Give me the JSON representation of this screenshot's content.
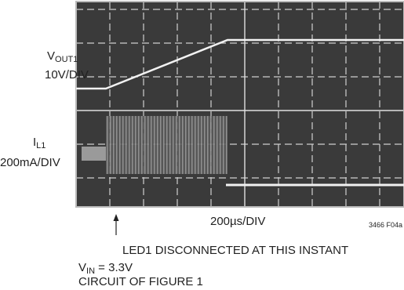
{
  "traces": [
    {
      "symbol": "V",
      "subscript": "OUT1",
      "scale": "10V/DIV"
    },
    {
      "symbol": "I",
      "subscript": "L1",
      "scale": "200mA/DIV"
    }
  ],
  "time_scale": "200µs/DIV",
  "figure_id": "3466 F04a",
  "annotation": "LED1 DISCONNECTED AT THIS INSTANT",
  "conditions": [
    {
      "symbol": "V",
      "subscript": "IN",
      "text": " = 3.3V"
    },
    {
      "text": "CIRCUIT OF FIGURE 1"
    }
  ]
}
